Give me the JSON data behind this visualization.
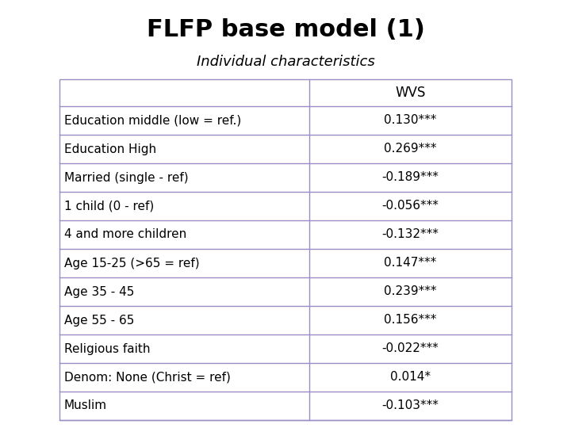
{
  "title": "FLFP base model (1)",
  "subtitle": "Individual characteristics",
  "col_header": "WVS",
  "rows": [
    [
      "Education middle (low = ref.)",
      "0.130***"
    ],
    [
      "Education High",
      "0.269***"
    ],
    [
      "Married (single - ref)",
      "-0.189***"
    ],
    [
      "1 child (0 - ref)",
      "-0.056***"
    ],
    [
      "4 and more children",
      "-0.132***"
    ],
    [
      "Age 15-25 (>65 = ref)",
      "0.147***"
    ],
    [
      "Age 35 - 45",
      "0.239***"
    ],
    [
      "Age 55 - 65",
      "0.156***"
    ],
    [
      "Religious faith",
      "-0.022***"
    ],
    [
      "Denom: None (Christ = ref)",
      "0.014*"
    ],
    [
      "Muslim",
      "-0.103***"
    ]
  ],
  "title_fontsize": 22,
  "subtitle_fontsize": 13,
  "table_fontsize": 11,
  "header_fontsize": 12,
  "bg_color": "#ffffff",
  "table_border_color": "#9b8ec4"
}
